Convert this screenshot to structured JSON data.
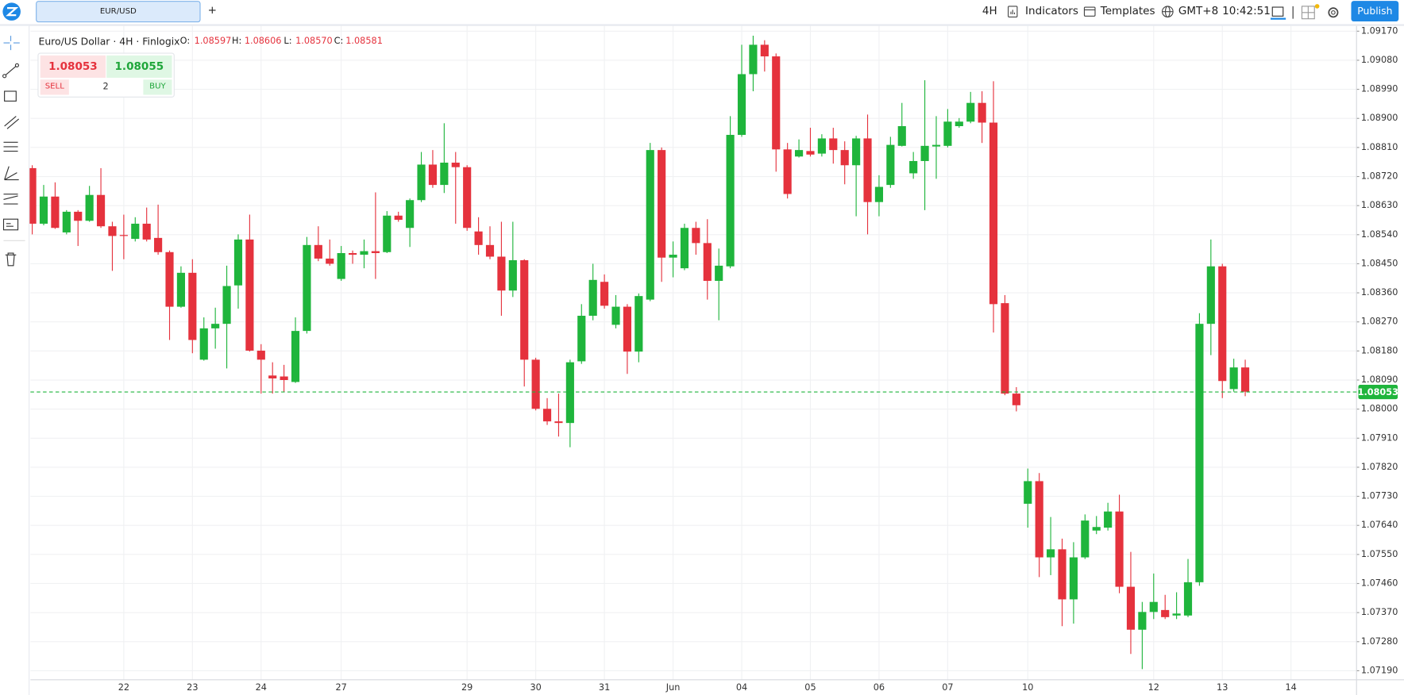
{
  "ui": {
    "tab": "EUR/USD",
    "new_tab": "+",
    "interval": "4H",
    "indicators": "Indicators",
    "templates": "Templates",
    "timezone": "GMT+8",
    "clock": "10:42:51",
    "publish": "Publish"
  },
  "legend": {
    "title": "Euro/US Dollar · 4H · Finlogix",
    "o_label": "O:",
    "o": "1.08597",
    "h_label": "H:",
    "h": "1.08606",
    "l_label": "L:",
    "l": "1.08570",
    "c_label": "C:",
    "c": "1.08581"
  },
  "trade": {
    "sell_price": "1.08053",
    "buy_price": "1.08055",
    "sell": "SELL",
    "quantity": "2",
    "buy": "BUY"
  },
  "chart_data": {
    "type": "candlestick",
    "categories": [
      null,
      null,
      null,
      null,
      null,
      null,
      null,
      null,
      "22",
      null,
      null,
      null,
      null,
      null,
      "23",
      null,
      null,
      null,
      null,
      null,
      "24",
      null,
      null,
      null,
      null,
      null,
      null,
      "27",
      null,
      null,
      null,
      null,
      null,
      null,
      null,
      null,
      null,
      null,
      "29",
      null,
      null,
      null,
      null,
      null,
      "30",
      null,
      null,
      null,
      null,
      null,
      "31",
      null,
      null,
      null,
      null,
      null,
      "Jun",
      null,
      null,
      null,
      null,
      null,
      "04",
      null,
      null,
      null,
      null,
      null,
      "05",
      null,
      null,
      null,
      null,
      null,
      "06",
      null,
      null,
      null,
      null,
      null,
      "07",
      null,
      null,
      null,
      null,
      null,
      null,
      "10",
      null,
      null,
      null,
      null,
      null,
      null,
      null,
      null,
      null,
      null,
      "12",
      null,
      null,
      null,
      null,
      null,
      "13",
      null,
      null,
      null,
      null,
      null,
      "14"
    ],
    "open": [
      1.08746,
      1.08574,
      1.08658,
      1.08547,
      1.08611,
      1.08583,
      1.08663,
      1.08566,
      1.08539,
      1.08527,
      1.08574,
      1.0853,
      1.08486,
      1.08317,
      1.08422,
      1.08153,
      1.0825,
      1.08264,
      1.08383,
      1.08525,
      1.08181,
      1.08104,
      1.08101,
      1.08084,
      1.08242,
      1.08508,
      1.08466,
      1.08403,
      1.08483,
      1.08478,
      1.08489,
      1.08486,
      1.08599,
      1.08561,
      1.08647,
      1.08757,
      1.08694,
      1.08763,
      1.08749,
      1.0855,
      1.08508,
      1.08472,
      1.08367,
      1.08461,
      1.08153,
      1.08001,
      1.07962,
      1.07957,
      1.08148,
      1.08289,
      1.08394,
      1.08261,
      1.08317,
      1.08178,
      1.08339,
      1.08802,
      1.08469,
      1.08436,
      1.08561,
      1.08514,
      1.08397,
      1.08442,
      1.08849,
      1.09037,
      1.09128,
      1.09092,
      1.08804,
      1.08782,
      1.08799,
      1.08791,
      1.08838,
      1.08802,
      1.08755,
      1.08838,
      1.08641,
      1.08694,
      1.08815,
      1.0873,
      1.08768,
      1.08813,
      1.08815,
      1.08876,
      1.0889,
      1.08948,
      1.08887,
      1.08328,
      1.08048,
      1.07707,
      1.07777,
      1.07541,
      1.07566,
      1.07411,
      1.07541,
      1.07624,
      1.07633,
      1.07683,
      1.0745,
      1.07317,
      1.07372,
      1.07378,
      1.07361,
      1.07361,
      1.07464,
      1.08264,
      1.08442,
      1.08062,
      1.08129,
      null,
      null,
      null,
      null
    ],
    "high": [
      1.08755,
      1.08694,
      1.08702,
      1.08616,
      1.08616,
      1.08691,
      1.08746,
      1.0858,
      1.08602,
      1.08594,
      1.08624,
      1.08633,
      1.08491,
      1.08442,
      1.08464,
      1.08284,
      1.08314,
      1.08444,
      1.08541,
      1.08602,
      1.08201,
      1.08145,
      1.08137,
      1.08284,
      1.08533,
      1.08566,
      1.08525,
      1.08505,
      1.08491,
      1.08525,
      1.08671,
      1.08613,
      1.08611,
      1.08652,
      1.08796,
      1.08802,
      1.08885,
      1.08796,
      1.08755,
      1.08594,
      1.08566,
      1.0858,
      1.0858,
      1.08464,
      1.08159,
      1.08034,
      1.08048,
      1.08153,
      1.08325,
      1.0845,
      1.08417,
      1.08353,
      1.08325,
      1.08358,
      1.08824,
      1.0881,
      1.08519,
      1.08574,
      1.0858,
      1.08588,
      1.08497,
      1.08907,
      1.09128,
      1.09156,
      1.09142,
      1.09101,
      1.08824,
      1.08835,
      1.08871,
      1.08851,
      1.08871,
      1.08829,
      1.08846,
      1.08912,
      1.08724,
      1.08843,
      1.08948,
      1.08796,
      1.09018,
      1.08907,
      1.08929,
      1.08901,
      1.08982,
      1.08984,
      1.09015,
      1.08353,
      1.08068,
      1.07816,
      1.07802,
      1.07666,
      1.07599,
      1.07588,
      1.07674,
      1.07669,
      1.0771,
      1.07735,
      1.07558,
      1.07403,
      1.07491,
      1.07425,
      1.07433,
      1.07536,
      1.08297,
      1.08525,
      1.0845,
      1.08156,
      1.08153,
      null,
      null,
      null,
      null
    ],
    "low": [
      1.08541,
      1.08569,
      1.08558,
      1.08541,
      1.08505,
      1.0858,
      1.08561,
      1.08428,
      1.08464,
      1.08519,
      1.08519,
      1.08478,
      1.08214,
      1.08314,
      1.08173,
      1.0815,
      1.08187,
      1.08126,
      1.08311,
      1.08178,
      1.08048,
      1.08048,
      1.08054,
      1.08081,
      1.08234,
      1.08458,
      1.08444,
      1.08397,
      1.0845,
      1.08436,
      1.08403,
      1.08483,
      1.0858,
      1.08502,
      1.08641,
      1.08685,
      1.08669,
      1.08574,
      1.08552,
      1.08478,
      1.08464,
      1.08289,
      1.08347,
      1.0807,
      1.07996,
      1.07951,
      1.07915,
      1.07882,
      1.0814,
      1.08275,
      1.08311,
      1.0825,
      1.08109,
      1.08145,
      1.08334,
      1.08394,
      1.08408,
      1.0843,
      1.08478,
      1.08339,
      1.08275,
      1.08436,
      1.08843,
      1.08984,
      1.09045,
      1.08735,
      1.08652,
      1.08779,
      1.08782,
      1.08782,
      1.0876,
      1.08696,
      1.08597,
      1.08541,
      1.08597,
      1.08685,
      1.08813,
      1.08713,
      1.08616,
      1.08713,
      1.0881,
      1.08871,
      1.08885,
      1.08824,
      1.08237,
      1.08043,
      1.07993,
      1.07633,
      1.0748,
      1.07486,
      1.07328,
      1.07336,
      1.07536,
      1.07613,
      1.07624,
      1.0743,
      1.07242,
      1.07195,
      1.0735,
      1.0735,
      1.0735,
      1.07356,
      1.07453,
      1.08167,
      1.08034,
      1.08054,
      1.0804,
      null,
      null,
      null,
      null
    ],
    "close": [
      1.08574,
      1.08658,
      1.08561,
      1.08611,
      1.08583,
      1.08663,
      1.08566,
      1.08536,
      1.08536,
      1.08574,
      1.08525,
      1.08486,
      1.08317,
      1.08422,
      1.08214,
      1.0825,
      1.08264,
      1.08381,
      1.08525,
      1.08181,
      1.08153,
      1.08095,
      1.0809,
      1.08242,
      1.08508,
      1.08466,
      1.0845,
      1.08483,
      1.08478,
      1.08489,
      1.08483,
      1.08599,
      1.08586,
      1.08647,
      1.08757,
      1.08694,
      1.08763,
      1.08749,
      1.08561,
      1.08508,
      1.08472,
      1.08367,
      1.08461,
      1.08153,
      1.08001,
      1.07962,
      1.07957,
      1.08145,
      1.08289,
      1.084,
      1.0832,
      1.08317,
      1.08178,
      1.0835,
      1.08802,
      1.08469,
      1.08478,
      1.08561,
      1.08514,
      1.08397,
      1.08444,
      1.08849,
      1.09037,
      1.09128,
      1.09092,
      1.08804,
      1.08666,
      1.08802,
      1.08788,
      1.08838,
      1.08802,
      1.08755,
      1.08838,
      1.08641,
      1.08688,
      1.08818,
      1.08876,
      1.08768,
      1.08815,
      1.08818,
      1.0889,
      1.0889,
      1.08948,
      1.08887,
      1.08325,
      1.08048,
      1.08012,
      1.07777,
      1.07541,
      1.07566,
      1.07411,
      1.07541,
      1.07655,
      1.07635,
      1.07683,
      1.0745,
      1.07317,
      1.07372,
      1.07403,
      1.07356,
      1.07367,
      1.07464,
      1.08264,
      1.08442,
      1.08087,
      1.08129,
      1.08054,
      null,
      null,
      null,
      null
    ],
    "up_color": "#1fb53c",
    "down_color": "#e5323d",
    "last_price": 1.08053,
    "last_price_color": "#1fb53c",
    "ylim": [
      1.07162,
      1.09189
    ],
    "yticks": [
      {
        "value": 1.0719,
        "label": "1.07190"
      },
      {
        "value": 1.0728,
        "label": "1.07280"
      },
      {
        "value": 1.0737,
        "label": "1.07370"
      },
      {
        "value": 1.0746,
        "label": "1.07460"
      },
      {
        "value": 1.0755,
        "label": "1.07550"
      },
      {
        "value": 1.0764,
        "label": "1.07640"
      },
      {
        "value": 1.0773,
        "label": "1.07730"
      },
      {
        "value": 1.0782,
        "label": "1.07820"
      },
      {
        "value": 1.0791,
        "label": "1.07910"
      },
      {
        "value": 1.08,
        "label": "1.08000"
      },
      {
        "value": 1.0809,
        "label": "1.08090"
      },
      {
        "value": 1.0818,
        "label": "1.08180"
      },
      {
        "value": 1.0827,
        "label": "1.08270"
      },
      {
        "value": 1.0836,
        "label": "1.08360"
      },
      {
        "value": 1.0845,
        "label": "1.08450"
      },
      {
        "value": 1.0854,
        "label": "1.08540"
      },
      {
        "value": 1.0863,
        "label": "1.08630"
      },
      {
        "value": 1.0872,
        "label": "1.08720"
      },
      {
        "value": 1.0881,
        "label": "1.08810"
      },
      {
        "value": 1.089,
        "label": "1.08900"
      },
      {
        "value": 1.0899,
        "label": "1.08990"
      },
      {
        "value": 1.0908,
        "label": "1.09080"
      },
      {
        "value": 1.0917,
        "label": "1.09170"
      }
    ],
    "grid": true
  }
}
